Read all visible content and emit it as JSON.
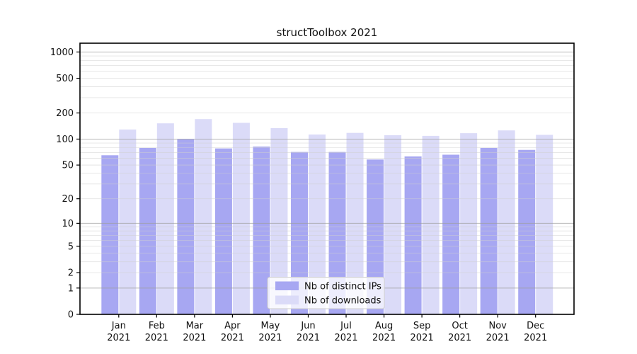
{
  "figure": {
    "title": "structToolbox 2021"
  },
  "chart_data": {
    "type": "bar",
    "title": "structToolbox 2021",
    "categories": [
      "Jan",
      "Feb",
      "Mar",
      "Apr",
      "May",
      "Jun",
      "Jul",
      "Aug",
      "Sep",
      "Oct",
      "Nov",
      "Dec"
    ],
    "category_year": "2021",
    "series": [
      {
        "name": "Nb of distinct IPs",
        "color": "#a7a7f2",
        "values": [
          65,
          79,
          100,
          78,
          82,
          71,
          71,
          58,
          63,
          66,
          79,
          75
        ]
      },
      {
        "name": "Nb of downloads",
        "color": "#dbdbf8",
        "values": [
          129,
          152,
          170,
          154,
          134,
          113,
          118,
          111,
          109,
          117,
          126,
          112
        ]
      }
    ],
    "yscale": "log1p",
    "yticks": [
      0,
      1,
      2,
      5,
      10,
      20,
      50,
      100,
      200,
      500,
      1000
    ],
    "ylim": [
      0,
      1260
    ],
    "xlabel": "",
    "ylabel": "",
    "grid": true,
    "legend_position": "lower center"
  },
  "colors": {
    "major_grid": "#9e9e9e",
    "minor_grid": "#cfcfcf",
    "spine": "#000000",
    "tick_text": "#111111",
    "legend_border": "#cccccc",
    "legend_bg": "#ffffff"
  }
}
